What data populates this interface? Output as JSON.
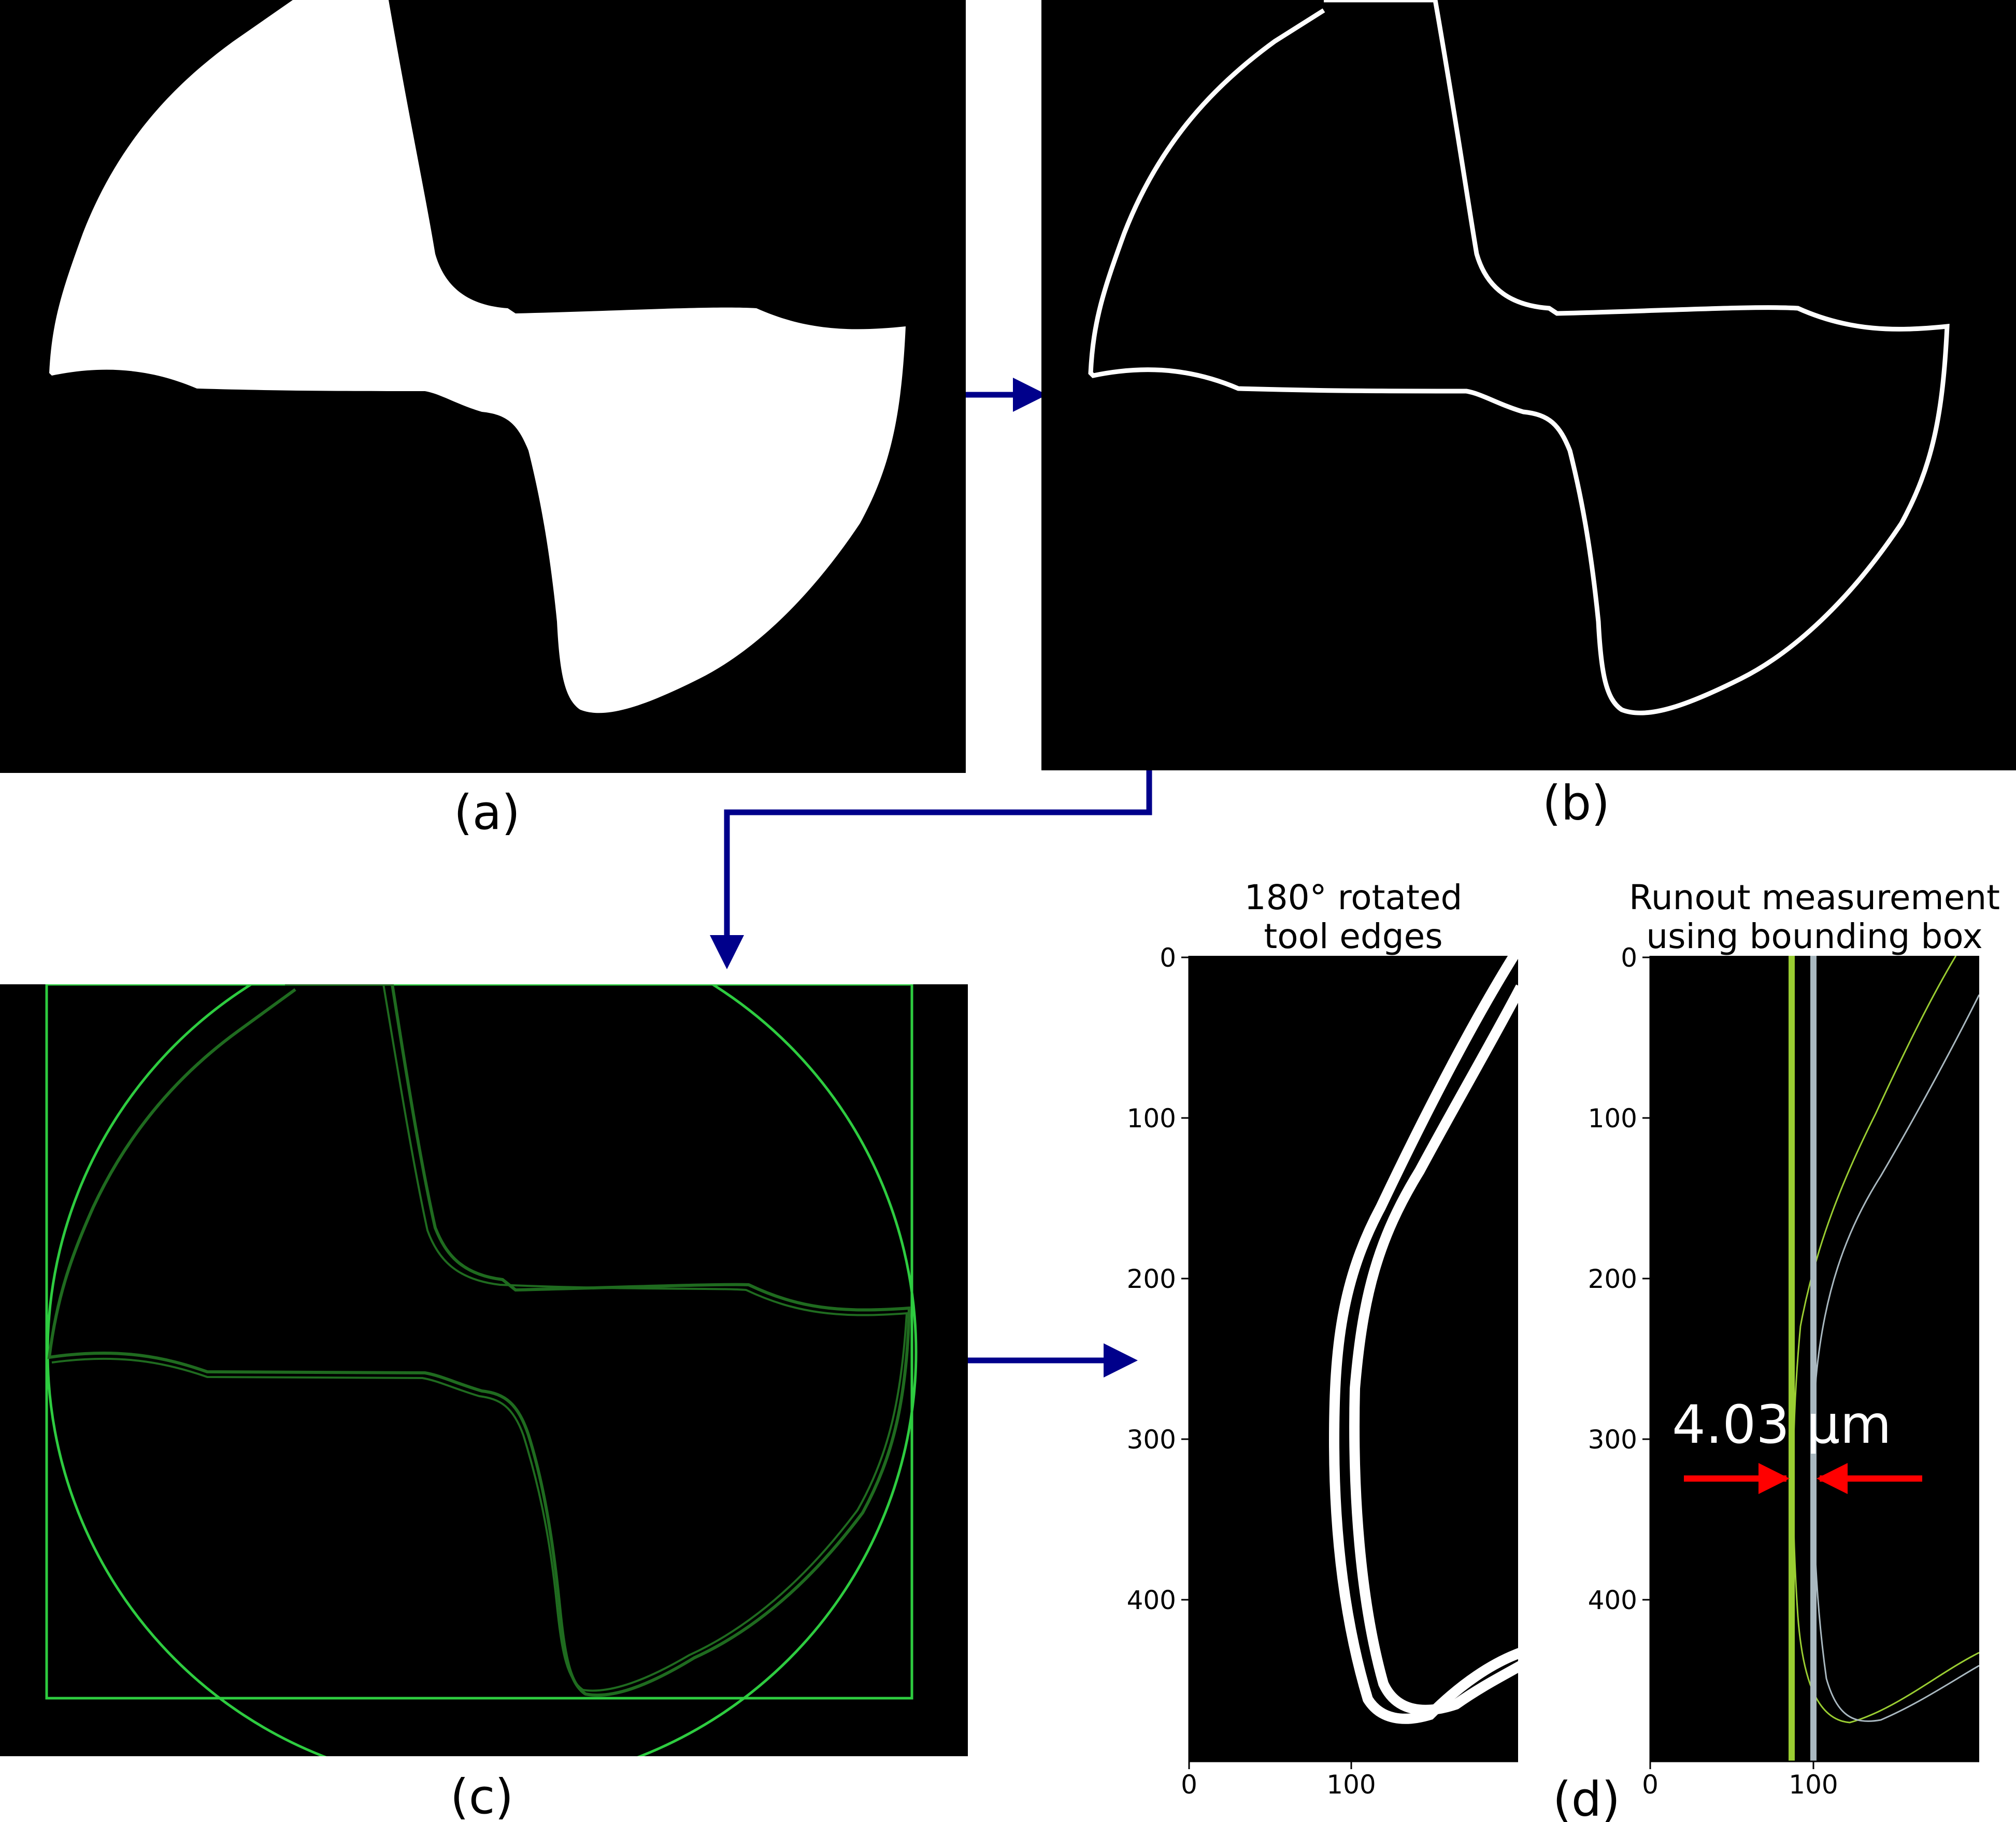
{
  "panels": {
    "a": {
      "label": "(a)"
    },
    "b": {
      "label": "(b)"
    },
    "c": {
      "label": "(c)"
    },
    "d": {
      "label": "(d)"
    }
  },
  "plot_left": {
    "title_line1": "180° rotated",
    "title_line2": "tool edges",
    "yticks": [
      "0",
      "100",
      "200",
      "300",
      "400"
    ],
    "xticks": [
      "0",
      "100"
    ]
  },
  "plot_right": {
    "title_line1": "Runout measurement",
    "title_line2": "using bounding box",
    "yticks": [
      "0",
      "100",
      "200",
      "300",
      "400"
    ],
    "xticks": [
      "0",
      "100"
    ],
    "measurement": "4.03 μm"
  },
  "colors": {
    "arrow": "#00008B",
    "edge_white": "#ffffff",
    "overlay_green": "#2ecc40",
    "contour_dark_green": "#1f6b1f",
    "bbox_line_lime": "#9acd32",
    "bbox_line_gray": "#a9b8c0",
    "measure_arrow": "#ff0000"
  }
}
